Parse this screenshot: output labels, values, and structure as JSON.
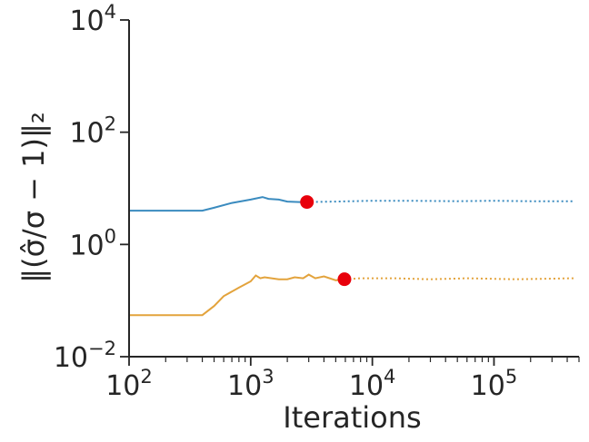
{
  "chart_data": {
    "type": "line",
    "xlabel": "Iterations",
    "ylabel": "‖(σ̂/σ − 1)‖₂",
    "xscale": "log",
    "yscale": "log",
    "xlim": [
      100,
      500000
    ],
    "ylim": [
      0.01,
      10000
    ],
    "x_ticks": [
      {
        "value": 100,
        "base": "10",
        "exp": "2"
      },
      {
        "value": 1000,
        "base": "10",
        "exp": "3"
      },
      {
        "value": 10000,
        "base": "10",
        "exp": "4"
      },
      {
        "value": 100000,
        "base": "10",
        "exp": "5"
      }
    ],
    "y_ticks": [
      {
        "value": 0.01,
        "base": "10",
        "exp": "−2"
      },
      {
        "value": 1,
        "base": "10",
        "exp": "0"
      },
      {
        "value": 100,
        "base": "10",
        "exp": "2"
      },
      {
        "value": 10000,
        "base": "10",
        "exp": "4"
      }
    ],
    "grid": false,
    "series": [
      {
        "color": "#3a8bbf",
        "solid": [
          [
            100,
            4.0
          ],
          [
            400,
            4.0
          ],
          [
            500,
            4.5
          ],
          [
            700,
            5.5
          ],
          [
            1000,
            6.3
          ],
          [
            1250,
            7.0
          ],
          [
            1400,
            6.5
          ],
          [
            1700,
            6.3
          ],
          [
            2000,
            5.8
          ],
          [
            2500,
            5.7
          ],
          [
            2900,
            5.7
          ]
        ],
        "dotted": [
          [
            2900,
            5.7
          ],
          [
            5000,
            5.8
          ],
          [
            10000,
            6.0
          ],
          [
            20000,
            6.0
          ],
          [
            50000,
            5.9
          ],
          [
            100000,
            6.0
          ],
          [
            200000,
            5.9
          ],
          [
            450000,
            5.9
          ]
        ],
        "marker": [
          2900,
          5.7
        ]
      },
      {
        "color": "#e3a33c",
        "solid": [
          [
            100,
            0.055
          ],
          [
            400,
            0.055
          ],
          [
            500,
            0.08
          ],
          [
            600,
            0.12
          ],
          [
            800,
            0.17
          ],
          [
            1000,
            0.22
          ],
          [
            1100,
            0.28
          ],
          [
            1200,
            0.25
          ],
          [
            1300,
            0.26
          ],
          [
            1700,
            0.24
          ],
          [
            2000,
            0.24
          ],
          [
            2300,
            0.26
          ],
          [
            2700,
            0.25
          ],
          [
            3000,
            0.29
          ],
          [
            3400,
            0.25
          ],
          [
            4000,
            0.27
          ],
          [
            5000,
            0.23
          ],
          [
            5900,
            0.24
          ]
        ],
        "dotted": [
          [
            5900,
            0.24
          ],
          [
            8000,
            0.25
          ],
          [
            15000,
            0.25
          ],
          [
            30000,
            0.24
          ],
          [
            60000,
            0.25
          ],
          [
            150000,
            0.24
          ],
          [
            450000,
            0.25
          ]
        ],
        "marker": [
          5900,
          0.24
        ]
      }
    ],
    "marker_color": "#e8000b"
  }
}
